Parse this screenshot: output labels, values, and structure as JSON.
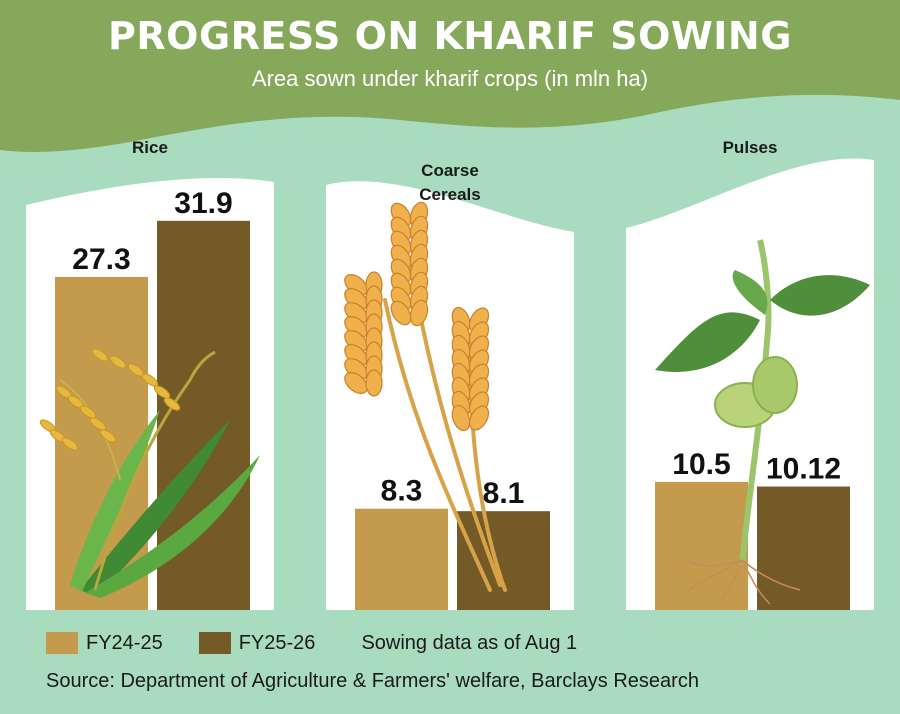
{
  "title": "PROGRESS ON KHARIF SOWING",
  "subtitle": "Area sown under kharif crops (in mln ha)",
  "legend": {
    "items": [
      {
        "label": "FY24-25",
        "color": "#c49a4d"
      },
      {
        "label": "FY25-26",
        "color": "#735a27"
      }
    ],
    "note": "Sowing data as of Aug 1"
  },
  "source": "Source: Department of Agriculture & Farmers' welfare, Barclays Research",
  "colors": {
    "banner": "#86a85a",
    "background": "#a9dcbf",
    "panel": "#ffffff"
  },
  "chart_data": {
    "type": "bar",
    "ylabel": "mln ha",
    "panels": [
      {
        "title": [
          "Rice"
        ],
        "icon": "rice-plant-icon",
        "series": [
          {
            "name": "FY24-25",
            "value": 27.3,
            "label": "27.3"
          },
          {
            "name": "FY25-26",
            "value": 31.9,
            "label": "31.9"
          }
        ]
      },
      {
        "title": [
          "Coarse",
          "Cereals"
        ],
        "icon": "wheat-icon",
        "series": [
          {
            "name": "FY24-25",
            "value": 8.3,
            "label": "8.3"
          },
          {
            "name": "FY25-26",
            "value": 8.1,
            "label": "8.1"
          }
        ]
      },
      {
        "title": [
          "Pulses"
        ],
        "icon": "seedling-icon",
        "series": [
          {
            "name": "FY24-25",
            "value": 10.5,
            "label": "10.5"
          },
          {
            "name": "FY25-26",
            "value": 10.12,
            "label": "10.12"
          }
        ]
      }
    ]
  }
}
